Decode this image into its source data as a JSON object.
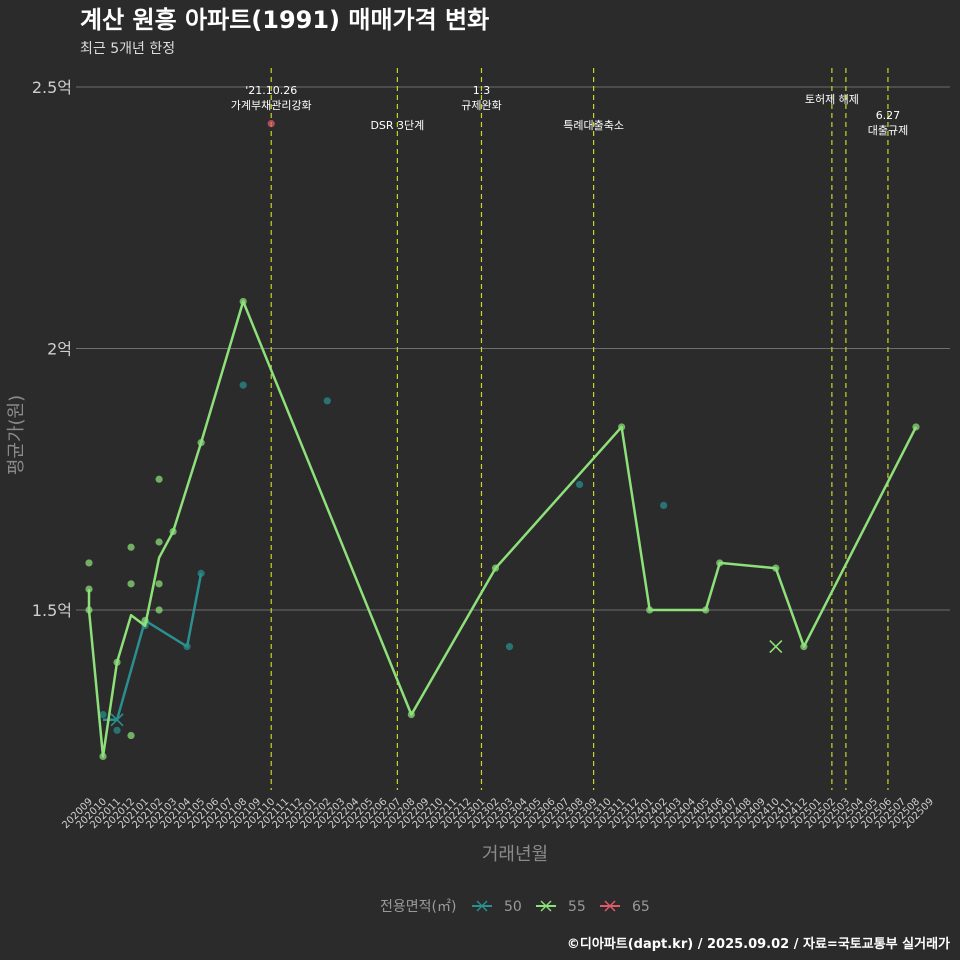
{
  "header": {
    "title": "계산 원흥 아파트(1991) 매매가격 변화",
    "subtitle": "최근 5개년 한정"
  },
  "caption": "©디아파트(dapt.kr) / 2025.09.02 / 자료=국토교통부 실거래가",
  "colors": {
    "background": "#2b2b2b",
    "grid": "#6e6e6e",
    "event_line": "#c8d62a",
    "series_50": "#2a8f8f",
    "series_55": "#8ee07a",
    "series_65": "#e05a6a"
  },
  "chart_data": {
    "type": "line",
    "title": "계산 원흥 아파트(1991) 매매가격 변화",
    "subtitle": "최근 5개년 한정",
    "xlabel": "거래년월",
    "ylabel": "평균가(원)",
    "ylim": [
      1.15,
      2.52
    ],
    "y_ticks": [
      {
        "value": 1.5,
        "label": "1.5억"
      },
      {
        "value": 2.0,
        "label": "2억"
      },
      {
        "value": 2.5,
        "label": "2.5억"
      }
    ],
    "x_categories": [
      "202009",
      "202010",
      "202011",
      "202012",
      "202101",
      "202102",
      "202103",
      "202104",
      "202105",
      "202106",
      "202107",
      "202108",
      "202109",
      "202110",
      "202111",
      "202112",
      "202201",
      "202202",
      "202203",
      "202204",
      "202205",
      "202206",
      "202207",
      "202208",
      "202209",
      "202210",
      "202211",
      "202212",
      "202301",
      "202302",
      "202303",
      "202304",
      "202305",
      "202306",
      "202307",
      "202308",
      "202309",
      "202310",
      "202311",
      "202312",
      "202401",
      "202402",
      "202403",
      "202404",
      "202405",
      "202406",
      "202407",
      "202408",
      "202409",
      "202410",
      "202411",
      "202412",
      "202501",
      "202502",
      "202503",
      "202504",
      "202505",
      "202506",
      "202507",
      "202508",
      "202509"
    ],
    "legend_title": "전용면적(㎡)",
    "legend_position": "bottom",
    "grid": true,
    "series": [
      {
        "name": "50",
        "color": "#2a8f8f",
        "line": [
          {
            "x": "202010",
            "y": 1.29
          },
          {
            "x": "202011",
            "y": 1.29
          },
          {
            "x": "202101",
            "y": 1.48
          },
          {
            "x": "202104",
            "y": 1.43
          },
          {
            "x": "202105",
            "y": 1.57
          }
        ],
        "points": [
          {
            "x": "202010",
            "y": 1.3
          },
          {
            "x": "202011",
            "y": 1.27
          },
          {
            "x": "202101",
            "y": 1.47
          },
          {
            "x": "202104",
            "y": 1.43
          },
          {
            "x": "202105",
            "y": 1.57
          },
          {
            "x": "202108",
            "y": 1.93
          },
          {
            "x": "202202",
            "y": 1.9
          },
          {
            "x": "202303",
            "y": 1.43
          },
          {
            "x": "202308",
            "y": 1.74
          },
          {
            "x": "202402",
            "y": 1.7
          }
        ],
        "marker_x": [
          {
            "x": "202011",
            "y": 1.29
          }
        ]
      },
      {
        "name": "55",
        "color": "#8ee07a",
        "line": [
          {
            "x": "202009",
            "y": 1.54
          },
          {
            "x": "202009",
            "y": 1.5
          },
          {
            "x": "202010",
            "y": 1.22
          },
          {
            "x": "202011",
            "y": 1.4
          },
          {
            "x": "202012",
            "y": 1.49
          },
          {
            "x": "202101",
            "y": 1.47
          },
          {
            "x": "202102",
            "y": 1.6
          },
          {
            "x": "202103",
            "y": 1.65
          },
          {
            "x": "202105",
            "y": 1.82
          },
          {
            "x": "202108",
            "y": 2.09
          },
          {
            "x": "202208",
            "y": 1.3
          },
          {
            "x": "202302",
            "y": 1.58
          },
          {
            "x": "202311",
            "y": 1.85
          },
          {
            "x": "202401",
            "y": 1.5
          },
          {
            "x": "202405",
            "y": 1.5
          },
          {
            "x": "202406",
            "y": 1.59
          },
          {
            "x": "202410",
            "y": 1.58
          },
          {
            "x": "202412",
            "y": 1.43
          },
          {
            "x": "202508",
            "y": 1.85
          }
        ],
        "points": [
          {
            "x": "202009",
            "y": 1.59
          },
          {
            "x": "202009",
            "y": 1.54
          },
          {
            "x": "202009",
            "y": 1.5
          },
          {
            "x": "202010",
            "y": 1.22
          },
          {
            "x": "202011",
            "y": 1.4
          },
          {
            "x": "202012",
            "y": 1.62
          },
          {
            "x": "202012",
            "y": 1.55
          },
          {
            "x": "202012",
            "y": 1.26
          },
          {
            "x": "202101",
            "y": 1.48
          },
          {
            "x": "202102",
            "y": 1.75
          },
          {
            "x": "202102",
            "y": 1.63
          },
          {
            "x": "202102",
            "y": 1.55
          },
          {
            "x": "202102",
            "y": 1.5
          },
          {
            "x": "202103",
            "y": 1.65
          },
          {
            "x": "202105",
            "y": 1.82
          },
          {
            "x": "202108",
            "y": 2.09
          },
          {
            "x": "202208",
            "y": 1.3
          },
          {
            "x": "202302",
            "y": 1.58
          },
          {
            "x": "202311",
            "y": 1.85
          },
          {
            "x": "202401",
            "y": 1.5
          },
          {
            "x": "202405",
            "y": 1.5
          },
          {
            "x": "202406",
            "y": 1.59
          },
          {
            "x": "202410",
            "y": 1.58
          },
          {
            "x": "202412",
            "y": 1.43
          },
          {
            "x": "202508",
            "y": 1.85
          }
        ],
        "marker_x": [
          {
            "x": "202410",
            "y": 1.43
          }
        ]
      },
      {
        "name": "65",
        "color": "#e05a6a",
        "line": [],
        "points": [
          {
            "x": "202110",
            "y": 2.43
          }
        ],
        "marker_x": []
      }
    ],
    "events": [
      {
        "x": "202110",
        "lines": [
          "'21.10.26",
          "가계부채관리강화"
        ],
        "level": "high"
      },
      {
        "x": "202207",
        "lines": [
          "DSR 3단계"
        ],
        "level": "low"
      },
      {
        "x": "202301",
        "lines": [
          "1.3",
          "규제완화"
        ],
        "level": "high"
      },
      {
        "x": "202309",
        "lines": [
          "특례대출축소"
        ],
        "level": "low"
      },
      {
        "x": "202502",
        "lines": [
          "토허제 해제"
        ],
        "level": "mid"
      },
      {
        "x": "202503",
        "lines": [],
        "level": "none"
      },
      {
        "x": "202506",
        "lines": [
          "6.27",
          "대출규제"
        ],
        "level": "low2"
      }
    ]
  }
}
